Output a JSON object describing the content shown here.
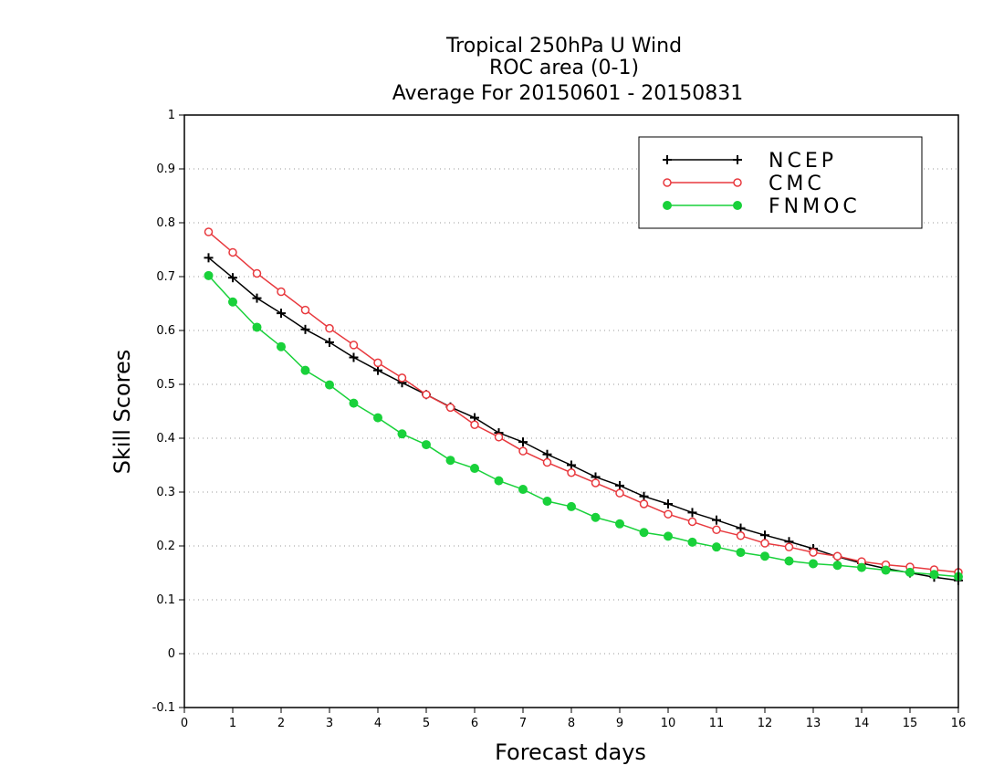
{
  "chart_data": {
    "type": "line",
    "title": [
      "Tropical 250hPa U Wind",
      "ROC area (0-1)",
      "Average For 20150601 - 20150831"
    ],
    "xlabel": "Forecast days",
    "ylabel": "Skill Scores",
    "xlim": [
      0,
      16
    ],
    "ylim": [
      -0.1,
      1
    ],
    "xticks": [
      "0",
      "1",
      "2",
      "3",
      "4",
      "5",
      "6",
      "7",
      "8",
      "9",
      "10",
      "11",
      "12",
      "13",
      "14",
      "15",
      "16"
    ],
    "yticks": [
      "-0.1",
      "0",
      "0.1",
      "0.2",
      "0.3",
      "0.4",
      "0.5",
      "0.6",
      "0.7",
      "0.8",
      "0.9",
      "1"
    ],
    "grid": true,
    "legend_position": "top-right",
    "x": [
      0.5,
      1,
      1.5,
      2,
      2.5,
      3,
      3.5,
      4,
      4.5,
      5,
      5.5,
      6,
      6.5,
      7,
      7.5,
      8,
      8.5,
      9,
      9.5,
      10,
      10.5,
      11,
      11.5,
      12,
      12.5,
      13,
      13.5,
      14,
      14.5,
      15,
      15.5,
      16
    ],
    "series": [
      {
        "name": "NCEP",
        "color": "#000000",
        "marker": "plus",
        "values": [
          0.735,
          0.698,
          0.66,
          0.632,
          0.602,
          0.578,
          0.55,
          0.526,
          0.503,
          0.481,
          0.458,
          0.438,
          0.41,
          0.393,
          0.37,
          0.35,
          0.328,
          0.312,
          0.292,
          0.278,
          0.262,
          0.248,
          0.233,
          0.22,
          0.208,
          0.195,
          0.18,
          0.168,
          0.158,
          0.15,
          0.142,
          0.136
        ]
      },
      {
        "name": "CMC",
        "color": "#e8393e",
        "marker": "open-circle",
        "values": [
          0.783,
          0.745,
          0.706,
          0.672,
          0.638,
          0.604,
          0.573,
          0.54,
          0.512,
          0.481,
          0.457,
          0.425,
          0.402,
          0.376,
          0.355,
          0.336,
          0.317,
          0.298,
          0.278,
          0.259,
          0.245,
          0.23,
          0.219,
          0.205,
          0.198,
          0.188,
          0.181,
          0.171,
          0.165,
          0.161,
          0.156,
          0.151
        ]
      },
      {
        "name": "FNMOC",
        "color": "#19d13a",
        "marker": "filled-circle",
        "values": [
          0.702,
          0.653,
          0.606,
          0.57,
          0.526,
          0.499,
          0.465,
          0.438,
          0.408,
          0.388,
          0.359,
          0.344,
          0.321,
          0.305,
          0.283,
          0.273,
          0.253,
          0.241,
          0.225,
          0.218,
          0.207,
          0.198,
          0.188,
          0.181,
          0.172,
          0.167,
          0.164,
          0.16,
          0.155,
          0.151,
          0.147,
          0.143
        ]
      }
    ]
  }
}
